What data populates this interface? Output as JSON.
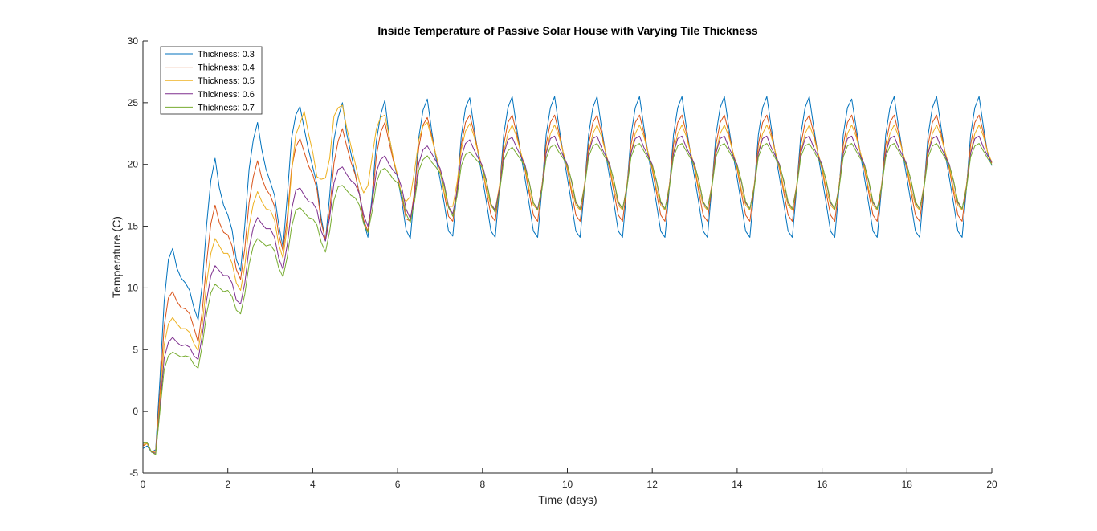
{
  "chart_data": {
    "type": "line",
    "title": "Inside Temperature of Passive Solar House with Varying Tile Thickness",
    "xlabel": "Time (days)",
    "ylabel": "Temperature (C)",
    "xlim": [
      0,
      20
    ],
    "ylim": [
      -5,
      30
    ],
    "xticks": [
      0,
      2,
      4,
      6,
      8,
      10,
      12,
      14,
      16,
      18,
      20
    ],
    "yticks": [
      -5,
      0,
      5,
      10,
      15,
      20,
      25,
      30
    ],
    "grid": false,
    "legend": {
      "placement": "top-left",
      "entries": [
        "Thickness: 0.3",
        "Thickness: 0.4",
        "Thickness: 0.5",
        "Thickness: 0.6",
        "Thickness: 0.7"
      ]
    },
    "x": [
      0,
      0.1,
      0.2,
      0.3,
      0.4,
      0.5,
      0.6,
      0.7,
      0.8,
      0.9,
      1.0,
      1.1,
      1.2,
      1.3,
      1.4,
      1.5,
      1.6,
      1.7,
      1.8,
      1.9,
      2.0,
      2.1,
      2.2,
      2.3,
      2.4,
      2.5,
      2.6,
      2.7,
      2.8,
      2.9,
      3.0,
      3.1,
      3.2,
      3.3,
      3.4,
      3.5,
      3.6,
      3.7,
      3.8,
      3.9,
      4.0,
      4.1,
      4.2,
      4.3,
      4.4,
      4.5,
      4.6,
      4.7,
      4.8,
      4.9,
      5.0,
      5.1,
      5.2,
      5.3,
      5.4,
      5.5,
      5.6,
      5.7,
      5.8,
      5.9,
      6.0,
      6.1,
      6.2,
      6.3,
      6.4,
      6.5,
      6.6,
      6.7,
      6.8,
      6.9,
      7.0,
      7.1,
      7.2,
      7.3,
      7.4,
      7.5,
      7.6,
      7.7,
      7.8,
      7.9,
      8.0,
      8.1,
      8.2,
      8.3,
      8.4,
      8.5,
      8.6,
      8.7,
      8.8,
      8.9,
      9.0,
      9.1,
      9.2,
      9.3,
      9.4,
      9.5,
      9.6,
      9.7,
      9.8,
      9.9,
      10.0,
      10.1,
      10.2,
      10.3,
      10.4,
      10.5,
      10.6,
      10.7,
      10.8,
      10.9,
      11.0,
      11.1,
      11.2,
      11.3,
      11.4,
      11.5,
      11.6,
      11.7,
      11.8,
      11.9,
      12.0,
      12.1,
      12.2,
      12.3,
      12.4,
      12.5,
      12.6,
      12.7,
      12.8,
      12.9,
      13.0,
      13.1,
      13.2,
      13.3,
      13.4,
      13.5,
      13.6,
      13.7,
      13.8,
      13.9,
      14.0,
      14.1,
      14.2,
      14.3,
      14.4,
      14.5,
      14.6,
      14.7,
      14.8,
      14.9,
      15.0,
      15.1,
      15.2,
      15.3,
      15.4,
      15.5,
      15.6,
      15.7,
      15.8,
      15.9,
      16.0,
      16.1,
      16.2,
      16.3,
      16.4,
      16.5,
      16.6,
      16.7,
      16.8,
      16.9,
      17.0,
      17.1,
      17.2,
      17.3,
      17.4,
      17.5,
      17.6,
      17.7,
      17.8,
      17.9,
      18.0,
      18.1,
      18.2,
      18.3,
      18.4,
      18.5,
      18.6,
      18.7,
      18.8,
      18.9,
      19.0,
      19.1,
      19.2,
      19.3,
      19.4,
      19.5,
      19.6,
      19.7,
      19.8,
      19.9,
      20.0
    ],
    "series": [
      {
        "name": "Thickness: 0.3",
        "color": "#0072bd",
        "values": [
          -3.0,
          -2.8,
          -3.3,
          -3.1,
          2.6,
          8.9,
          12.3,
          13.2,
          11.6,
          10.8,
          10.4,
          9.8,
          8.4,
          7.4,
          10.4,
          15.1,
          18.7,
          20.5,
          18.1,
          16.7,
          15.9,
          14.7,
          12.3,
          11.4,
          15.1,
          19.6,
          22.0,
          23.4,
          21.2,
          19.6,
          18.6,
          17.5,
          15.1,
          13.3,
          17.4,
          22.1,
          24.0,
          24.7,
          22.9,
          21.2,
          19.8,
          18.4,
          15.7,
          13.8,
          17.5,
          22.0,
          23.8,
          25.0,
          22.5,
          20.9,
          19.3,
          17.6,
          15.4,
          14.1,
          17.5,
          21.9,
          24.0,
          25.2,
          22.3,
          20.4,
          18.9,
          17.0,
          14.7,
          14.0,
          17.9,
          22.2,
          24.4,
          25.3,
          22.8,
          20.6,
          18.8,
          16.8,
          14.6,
          14.2,
          18.0,
          22.3,
          24.6,
          25.4,
          23.0,
          20.8,
          18.9,
          16.8,
          14.6,
          14.1,
          18.0,
          22.4,
          24.6,
          25.5,
          23.1,
          20.9,
          18.9,
          16.8,
          14.6,
          14.1,
          18.0,
          22.4,
          24.6,
          25.5,
          23.1,
          20.9,
          18.9,
          16.8,
          14.6,
          14.1,
          18.0,
          22.4,
          24.6,
          25.5,
          23.1,
          20.9,
          18.9,
          16.8,
          14.6,
          14.1,
          18.0,
          22.4,
          24.6,
          25.5,
          23.1,
          20.9,
          18.9,
          16.8,
          14.6,
          14.1,
          18.0,
          22.4,
          24.6,
          25.5,
          23.1,
          20.9,
          18.9,
          16.8,
          14.6,
          14.1,
          18.0,
          22.4,
          24.6,
          25.5,
          23.1,
          20.9,
          18.9,
          16.8,
          14.6,
          14.1,
          18.0,
          22.4,
          24.6,
          25.5,
          23.1,
          20.9,
          18.9,
          16.8,
          14.6,
          14.1,
          18.0,
          22.4,
          24.6,
          25.5,
          23.1,
          20.9,
          18.9,
          16.8,
          14.6,
          14.1,
          18.0,
          22.4,
          24.6,
          25.3,
          23.1,
          20.9,
          18.9,
          16.8,
          14.6,
          14.1,
          18.0,
          22.4,
          24.6,
          25.5,
          23.1,
          20.9,
          18.9,
          16.8,
          14.6,
          14.1,
          18.0,
          22.4,
          24.6,
          25.5,
          23.1,
          20.9,
          18.9,
          16.8,
          14.6,
          14.1,
          18.0,
          22.4,
          24.6,
          25.5,
          23.1,
          20.9,
          19.9
        ]
      },
      {
        "name": "Thickness: 0.4",
        "color": "#d95319",
        "values": [
          -2.8,
          -2.6,
          -3.3,
          -3.2,
          1.5,
          6.9,
          9.2,
          9.7,
          8.9,
          8.4,
          8.3,
          7.9,
          6.8,
          5.6,
          8.2,
          12.1,
          15.2,
          16.7,
          15.3,
          14.5,
          14.3,
          13.4,
          11.5,
          10.7,
          13.2,
          16.9,
          19.0,
          20.3,
          18.9,
          18.0,
          17.5,
          16.6,
          14.3,
          13.0,
          15.7,
          19.6,
          21.4,
          22.1,
          21.0,
          19.9,
          19.2,
          18.0,
          15.3,
          13.9,
          16.2,
          20.1,
          21.9,
          22.9,
          21.5,
          20.2,
          19.2,
          17.6,
          15.5,
          14.6,
          17.0,
          20.7,
          22.6,
          23.4,
          21.8,
          20.3,
          19.1,
          17.4,
          15.6,
          15.4,
          17.9,
          21.4,
          23.2,
          23.8,
          22.4,
          20.8,
          19.5,
          17.6,
          15.8,
          15.4,
          18.0,
          21.6,
          23.4,
          24.0,
          22.6,
          21.0,
          19.6,
          17.7,
          15.9,
          15.4,
          18.1,
          21.6,
          23.4,
          24.0,
          22.6,
          21.0,
          19.6,
          17.7,
          15.9,
          15.4,
          18.1,
          21.6,
          23.4,
          24.0,
          22.6,
          21.0,
          19.6,
          17.7,
          15.9,
          15.4,
          18.1,
          21.6,
          23.4,
          24.0,
          22.6,
          21.0,
          19.6,
          17.7,
          15.9,
          15.4,
          18.1,
          21.6,
          23.4,
          24.0,
          22.6,
          21.0,
          19.6,
          17.7,
          15.9,
          15.4,
          18.1,
          21.6,
          23.4,
          24.0,
          22.6,
          21.0,
          19.6,
          17.7,
          15.9,
          15.4,
          18.1,
          21.6,
          23.4,
          24.0,
          22.6,
          21.0,
          19.6,
          17.7,
          15.9,
          15.4,
          18.1,
          21.6,
          23.4,
          24.0,
          22.6,
          21.0,
          19.6,
          17.7,
          15.9,
          15.4,
          18.1,
          21.6,
          23.4,
          24.0,
          22.6,
          21.0,
          19.6,
          17.7,
          15.9,
          15.4,
          18.1,
          21.6,
          23.4,
          24.0,
          22.6,
          21.0,
          19.6,
          17.7,
          15.9,
          15.4,
          18.1,
          21.6,
          23.4,
          24.0,
          22.6,
          21.0,
          19.6,
          17.7,
          15.9,
          15.4,
          18.1,
          21.6,
          23.4,
          24.0,
          22.6,
          21.0,
          19.6,
          17.7,
          15.9,
          15.4,
          18.1,
          21.6,
          23.4,
          24.0,
          22.6,
          21.0,
          20.1
        ]
      },
      {
        "name": "Thickness: 0.5",
        "color": "#edb120",
        "values": [
          -2.7,
          -2.6,
          -3.3,
          -3.3,
          0.8,
          5.4,
          7.1,
          7.6,
          7.1,
          6.7,
          6.7,
          6.4,
          5.5,
          4.9,
          7.1,
          10.4,
          12.8,
          14.0,
          13.4,
          12.8,
          12.8,
          12.0,
          10.4,
          9.8,
          11.8,
          15.0,
          16.8,
          17.8,
          17.0,
          16.4,
          16.3,
          15.5,
          13.5,
          12.4,
          15.0,
          19.3,
          22.4,
          23.3,
          24.3,
          22.5,
          21.0,
          19.0,
          18.8,
          18.9,
          20.5,
          23.9,
          24.6,
          24.8,
          23.0,
          21.5,
          20.1,
          18.6,
          17.7,
          18.3,
          20.6,
          22.9,
          23.8,
          24.0,
          22.3,
          20.5,
          19.1,
          17.4,
          17.0,
          17.4,
          19.5,
          22.0,
          23.1,
          23.4,
          22.2,
          20.8,
          19.5,
          17.7,
          16.6,
          16.6,
          18.5,
          21.2,
          22.7,
          23.3,
          22.3,
          20.9,
          19.6,
          18.0,
          16.6,
          16.3,
          18.3,
          21.0,
          22.5,
          23.2,
          22.3,
          21.0,
          19.8,
          18.0,
          16.7,
          16.3,
          18.3,
          21.0,
          22.5,
          23.2,
          22.3,
          21.0,
          19.8,
          18.0,
          16.7,
          16.3,
          18.3,
          21.0,
          22.5,
          23.2,
          22.3,
          21.0,
          19.8,
          18.0,
          16.7,
          16.3,
          18.3,
          21.0,
          22.5,
          23.2,
          22.3,
          21.0,
          19.8,
          18.0,
          16.7,
          16.3,
          18.3,
          21.0,
          22.5,
          23.2,
          22.3,
          21.0,
          19.8,
          18.0,
          16.7,
          16.3,
          18.3,
          21.0,
          22.5,
          23.2,
          22.3,
          21.0,
          19.8,
          18.0,
          16.7,
          16.3,
          18.3,
          21.0,
          22.5,
          23.2,
          22.3,
          21.0,
          19.8,
          18.0,
          16.7,
          16.3,
          18.3,
          21.0,
          22.5,
          23.2,
          22.3,
          21.0,
          19.8,
          18.0,
          16.7,
          16.3,
          18.3,
          21.0,
          22.5,
          23.2,
          22.3,
          21.0,
          19.8,
          18.0,
          16.7,
          16.3,
          18.3,
          21.0,
          22.5,
          23.2,
          22.3,
          21.0,
          19.8,
          18.0,
          16.7,
          16.3,
          18.3,
          21.0,
          22.5,
          23.2,
          22.3,
          21.0,
          19.8,
          18.0,
          16.7,
          16.3,
          18.3,
          21.0,
          22.5,
          23.2,
          22.3,
          21.0,
          20.2
        ]
      },
      {
        "name": "Thickness: 0.6",
        "color": "#7e2f8e",
        "values": [
          -2.6,
          -2.5,
          -3.3,
          -3.4,
          0.3,
          4.3,
          5.6,
          6.0,
          5.6,
          5.3,
          5.4,
          5.2,
          4.5,
          4.2,
          6.2,
          9.0,
          11.0,
          11.8,
          11.4,
          11.0,
          11.0,
          10.4,
          9.0,
          8.7,
          10.4,
          13.2,
          14.9,
          15.7,
          15.2,
          14.8,
          14.8,
          14.1,
          12.4,
          11.5,
          13.5,
          16.3,
          17.9,
          18.1,
          17.5,
          17.0,
          16.9,
          16.3,
          14.6,
          13.8,
          15.7,
          18.5,
          19.6,
          19.8,
          19.2,
          18.7,
          18.4,
          17.6,
          15.9,
          15.0,
          16.9,
          19.4,
          20.4,
          20.7,
          20.0,
          19.5,
          19.1,
          18.1,
          16.4,
          15.6,
          17.4,
          20.1,
          21.2,
          21.5,
          20.9,
          20.3,
          19.7,
          18.4,
          16.6,
          16.0,
          17.8,
          20.6,
          21.7,
          22.0,
          21.2,
          20.5,
          19.9,
          18.6,
          16.8,
          16.3,
          18.0,
          20.8,
          22.0,
          22.2,
          21.4,
          20.7,
          20.0,
          18.6,
          16.9,
          16.4,
          18.1,
          20.9,
          22.1,
          22.3,
          21.4,
          20.7,
          20.0,
          18.6,
          16.9,
          16.4,
          18.1,
          20.9,
          22.1,
          22.3,
          21.4,
          20.7,
          20.0,
          18.6,
          16.9,
          16.4,
          18.1,
          20.9,
          22.1,
          22.3,
          21.4,
          20.7,
          20.0,
          18.6,
          16.9,
          16.4,
          18.1,
          20.9,
          22.1,
          22.3,
          21.4,
          20.7,
          20.0,
          18.6,
          16.9,
          16.4,
          18.1,
          20.9,
          22.1,
          22.3,
          21.4,
          20.7,
          20.0,
          18.6,
          16.9,
          16.4,
          18.1,
          20.9,
          22.1,
          22.3,
          21.4,
          20.7,
          20.0,
          18.6,
          16.9,
          16.4,
          18.1,
          20.9,
          22.1,
          22.3,
          21.4,
          20.7,
          20.0,
          18.6,
          16.9,
          16.4,
          18.1,
          20.9,
          22.1,
          22.3,
          21.4,
          20.7,
          20.0,
          18.6,
          16.9,
          16.4,
          18.1,
          20.9,
          22.1,
          22.3,
          21.4,
          20.7,
          20.0,
          18.6,
          16.9,
          16.4,
          18.1,
          20.9,
          22.1,
          22.3,
          21.4,
          20.7,
          20.0,
          18.6,
          16.9,
          16.4,
          18.1,
          20.9,
          22.1,
          22.3,
          21.4,
          20.7,
          20.2
        ]
      },
      {
        "name": "Thickness: 0.7",
        "color": "#77ac30",
        "values": [
          -2.5,
          -2.5,
          -3.3,
          -3.5,
          0.0,
          3.4,
          4.5,
          4.8,
          4.6,
          4.4,
          4.5,
          4.4,
          3.8,
          3.5,
          5.4,
          7.9,
          9.6,
          10.3,
          10.0,
          9.7,
          9.8,
          9.3,
          8.2,
          7.9,
          9.5,
          11.9,
          13.4,
          14.0,
          13.7,
          13.4,
          13.5,
          13.0,
          11.6,
          10.9,
          12.5,
          14.9,
          16.3,
          16.5,
          16.1,
          15.7,
          15.6,
          15.1,
          13.7,
          12.9,
          14.6,
          17.1,
          18.2,
          18.3,
          17.9,
          17.5,
          17.3,
          16.7,
          15.2,
          14.5,
          16.2,
          18.5,
          19.5,
          19.7,
          19.3,
          18.8,
          18.5,
          17.6,
          16.0,
          15.3,
          17.0,
          19.5,
          20.4,
          20.7,
          20.2,
          19.8,
          19.3,
          18.2,
          16.5,
          15.8,
          17.4,
          19.9,
          20.8,
          21.0,
          20.6,
          20.2,
          19.7,
          18.5,
          16.8,
          16.1,
          17.7,
          20.3,
          21.1,
          21.4,
          20.9,
          20.4,
          19.8,
          18.6,
          16.9,
          16.3,
          17.9,
          20.5,
          21.4,
          21.6,
          21.0,
          20.5,
          19.9,
          18.7,
          17.0,
          16.4,
          18.0,
          20.6,
          21.5,
          21.7,
          21.1,
          20.5,
          19.9,
          18.7,
          17.0,
          16.4,
          18.0,
          20.6,
          21.5,
          21.7,
          21.1,
          20.5,
          19.9,
          18.7,
          17.0,
          16.4,
          18.0,
          20.6,
          21.5,
          21.7,
          21.1,
          20.5,
          19.9,
          18.7,
          17.0,
          16.4,
          18.0,
          20.6,
          21.5,
          21.7,
          21.1,
          20.5,
          19.9,
          18.7,
          17.0,
          16.4,
          18.0,
          20.6,
          21.5,
          21.7,
          21.1,
          20.5,
          19.9,
          18.7,
          17.0,
          16.4,
          18.0,
          20.6,
          21.5,
          21.7,
          21.1,
          20.5,
          19.9,
          18.7,
          17.0,
          16.4,
          18.0,
          20.6,
          21.5,
          21.7,
          21.1,
          20.5,
          19.9,
          18.7,
          17.0,
          16.4,
          18.0,
          20.6,
          21.5,
          21.7,
          21.1,
          20.5,
          19.9,
          18.7,
          17.0,
          16.4,
          18.0,
          20.6,
          21.5,
          21.7,
          21.1,
          20.5,
          19.9,
          18.7,
          17.0,
          16.4,
          18.0,
          20.6,
          21.5,
          21.7,
          21.1,
          20.5,
          20.0
        ]
      }
    ]
  }
}
